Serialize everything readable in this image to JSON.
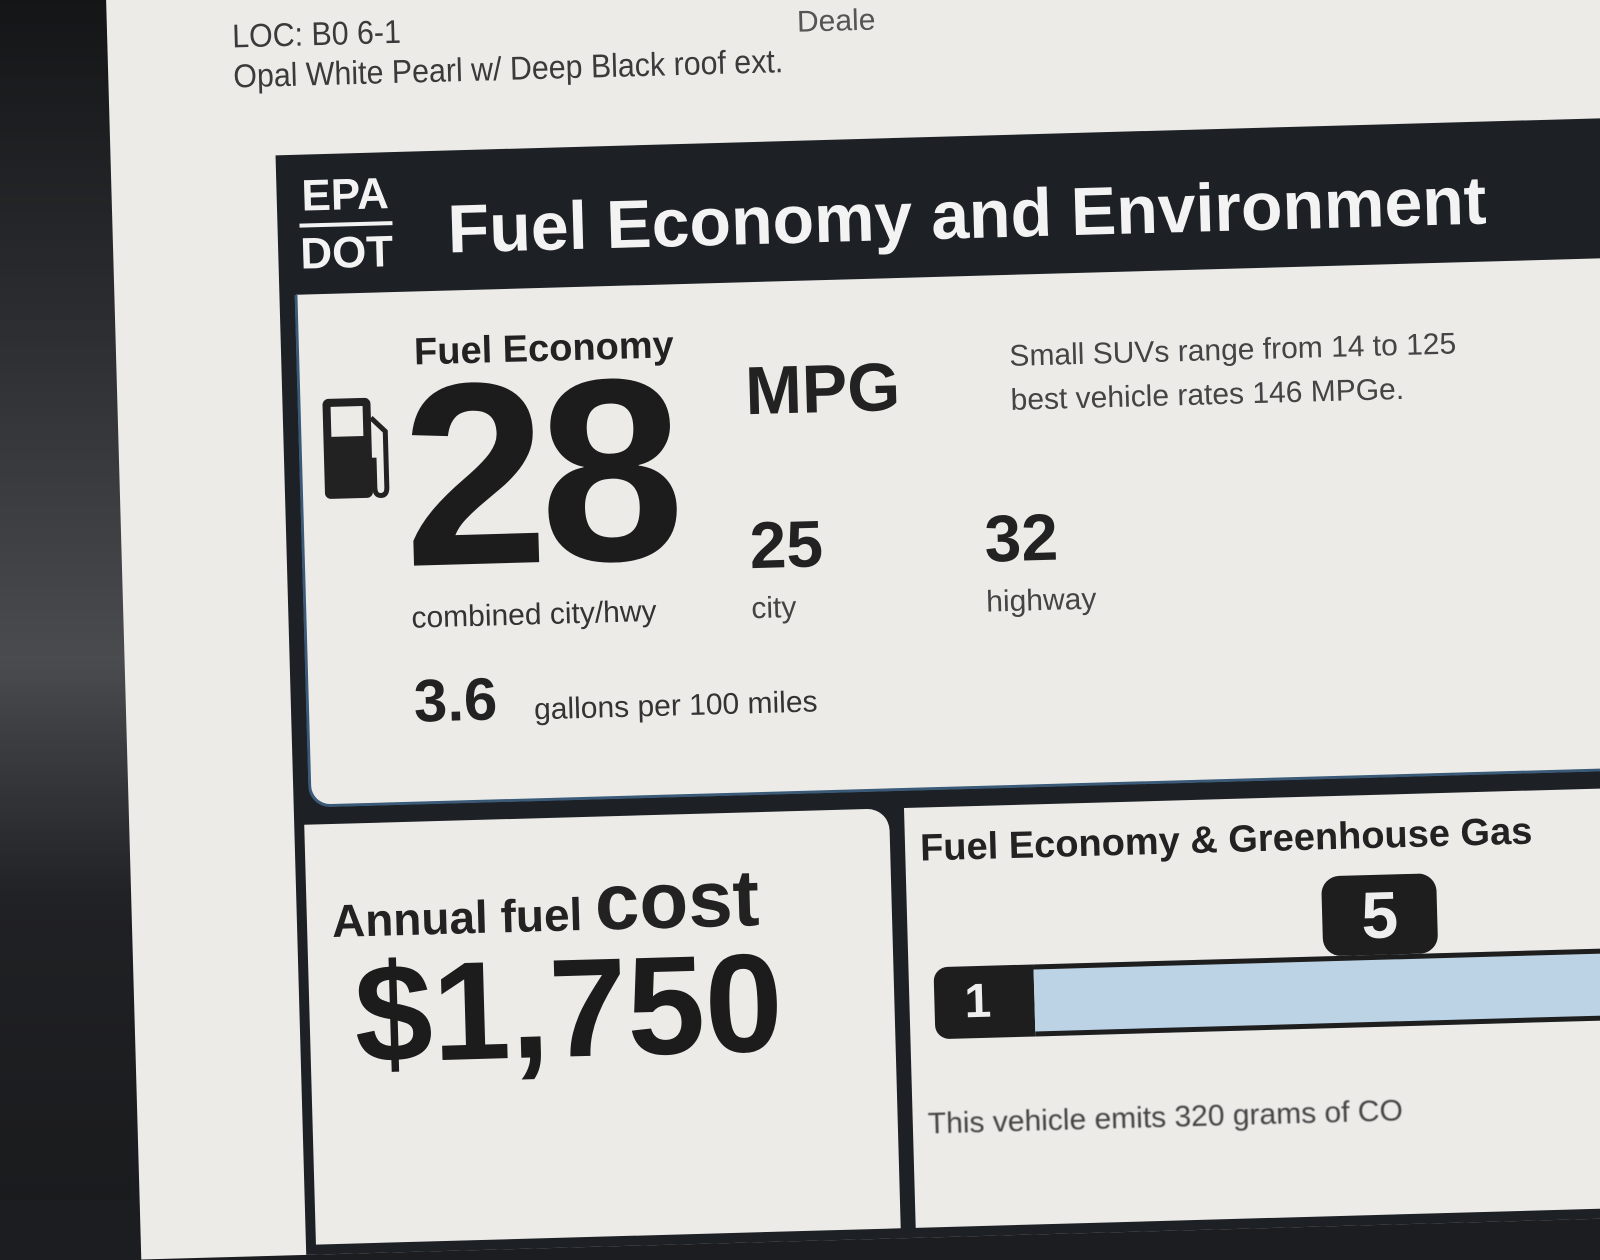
{
  "sticker": {
    "location": "LOC:  B0  6-1",
    "color": "Opal White Pearl w/ Deep Black roof ext.",
    "dealer_partial": "Deale"
  },
  "label": {
    "agency_top": "EPA",
    "agency_bottom": "DOT",
    "title": "Fuel Economy and Environment"
  },
  "fuel_economy": {
    "heading": "Fuel Economy",
    "icon": "fuel-pump-icon",
    "combined": "28",
    "unit": "MPG",
    "combined_label": "combined city/hwy",
    "city": "25",
    "city_label": "city",
    "highway": "32",
    "highway_label": "highway",
    "gallons": "3.6",
    "gallons_label": "gallons per 100 miles",
    "range_line1": "Small SUVs range from 14 to 125",
    "range_line2": "best vehicle rates 146 MPGe."
  },
  "annual_cost": {
    "label": "Annual fuel",
    "label_bold": "cost",
    "value": "$1,750"
  },
  "greenhouse": {
    "title": "Fuel Economy & Greenhouse Gas",
    "scale_min": "1",
    "rating": "5",
    "rating_value": 5,
    "bar_color": "#bcd3e6",
    "emits_text": "This vehicle emits 320 grams of CO"
  }
}
